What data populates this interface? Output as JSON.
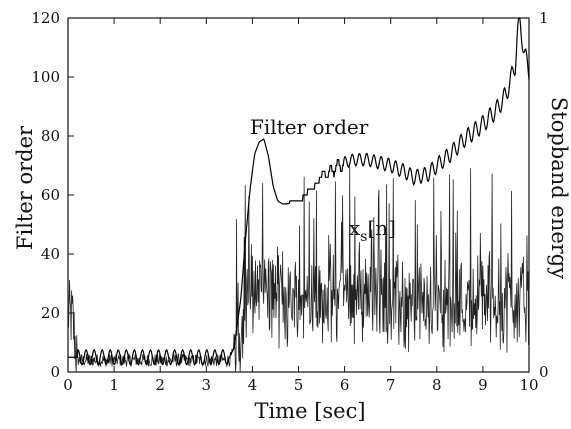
{
  "chart_data": {
    "type": "line",
    "xlabel": "Time [sec]",
    "ylabel_left": "Filter order",
    "ylabel_right": "Stopband energy",
    "xlim": [
      0,
      10
    ],
    "ylim_left": [
      0,
      120
    ],
    "ylim_right": [
      0,
      1
    ],
    "x_ticks": [
      "0",
      "1",
      "2",
      "3",
      "4",
      "5",
      "6",
      "7",
      "8",
      "9",
      "10"
    ],
    "y_left_ticks": [
      "0",
      "20",
      "40",
      "60",
      "80",
      "100",
      "120"
    ],
    "y_right_ticks": [
      "0",
      "1"
    ],
    "grid": false,
    "annotations": [
      {
        "text": "Filter order",
        "x": 4.5,
        "y": 87
      },
      {
        "text": "x",
        "sub": "s",
        "suffix": "[n]",
        "x": 6.4,
        "y": 52
      }
    ],
    "series": [
      {
        "label": "Filter order",
        "axis": "left",
        "x": [
          0,
          0.1,
          0.2,
          3.5,
          3.6,
          3.75,
          3.85,
          3.95,
          4.05,
          4.15,
          4.25,
          4.35,
          4.45,
          4.55,
          4.65,
          4.75,
          5.0,
          5.1,
          5.2,
          5.3,
          5.4,
          5.5,
          5.6,
          5.7,
          5.8,
          5.9,
          6.0,
          6.2,
          6.5,
          7.0,
          7.3,
          7.5,
          7.8,
          8.0,
          8.3,
          8.6,
          9.0,
          9.3,
          9.5,
          9.6,
          9.7,
          9.75,
          9.8,
          9.9,
          10.0
        ],
        "values": [
          5,
          5,
          5,
          5,
          8,
          25,
          45,
          62,
          74,
          78,
          79,
          73,
          63,
          58,
          57,
          57,
          58,
          59,
          61,
          62,
          64,
          66,
          67,
          68,
          69,
          70,
          71,
          72,
          72,
          70,
          68,
          66,
          67,
          70,
          74,
          79,
          84,
          89,
          94,
          99,
          104,
          115,
          119,
          108,
          102
        ],
        "ripple_amplitude": 3
      },
      {
        "label": "xs[n]",
        "axis": "left",
        "x": [
          0,
          0.1,
          0.2,
          3.5,
          3.7,
          3.9,
          4.1,
          4.5,
          5.0,
          5.5,
          6.0,
          6.5,
          7.0,
          7.5,
          8.0,
          8.5,
          9.0,
          9.5,
          10.0
        ],
        "values": [
          20,
          18,
          4,
          4,
          10,
          25,
          30,
          27,
          24,
          25,
          26,
          27,
          25,
          22,
          23,
          24,
          25,
          26,
          25
        ],
        "noise_amplitude": 20
      }
    ]
  }
}
